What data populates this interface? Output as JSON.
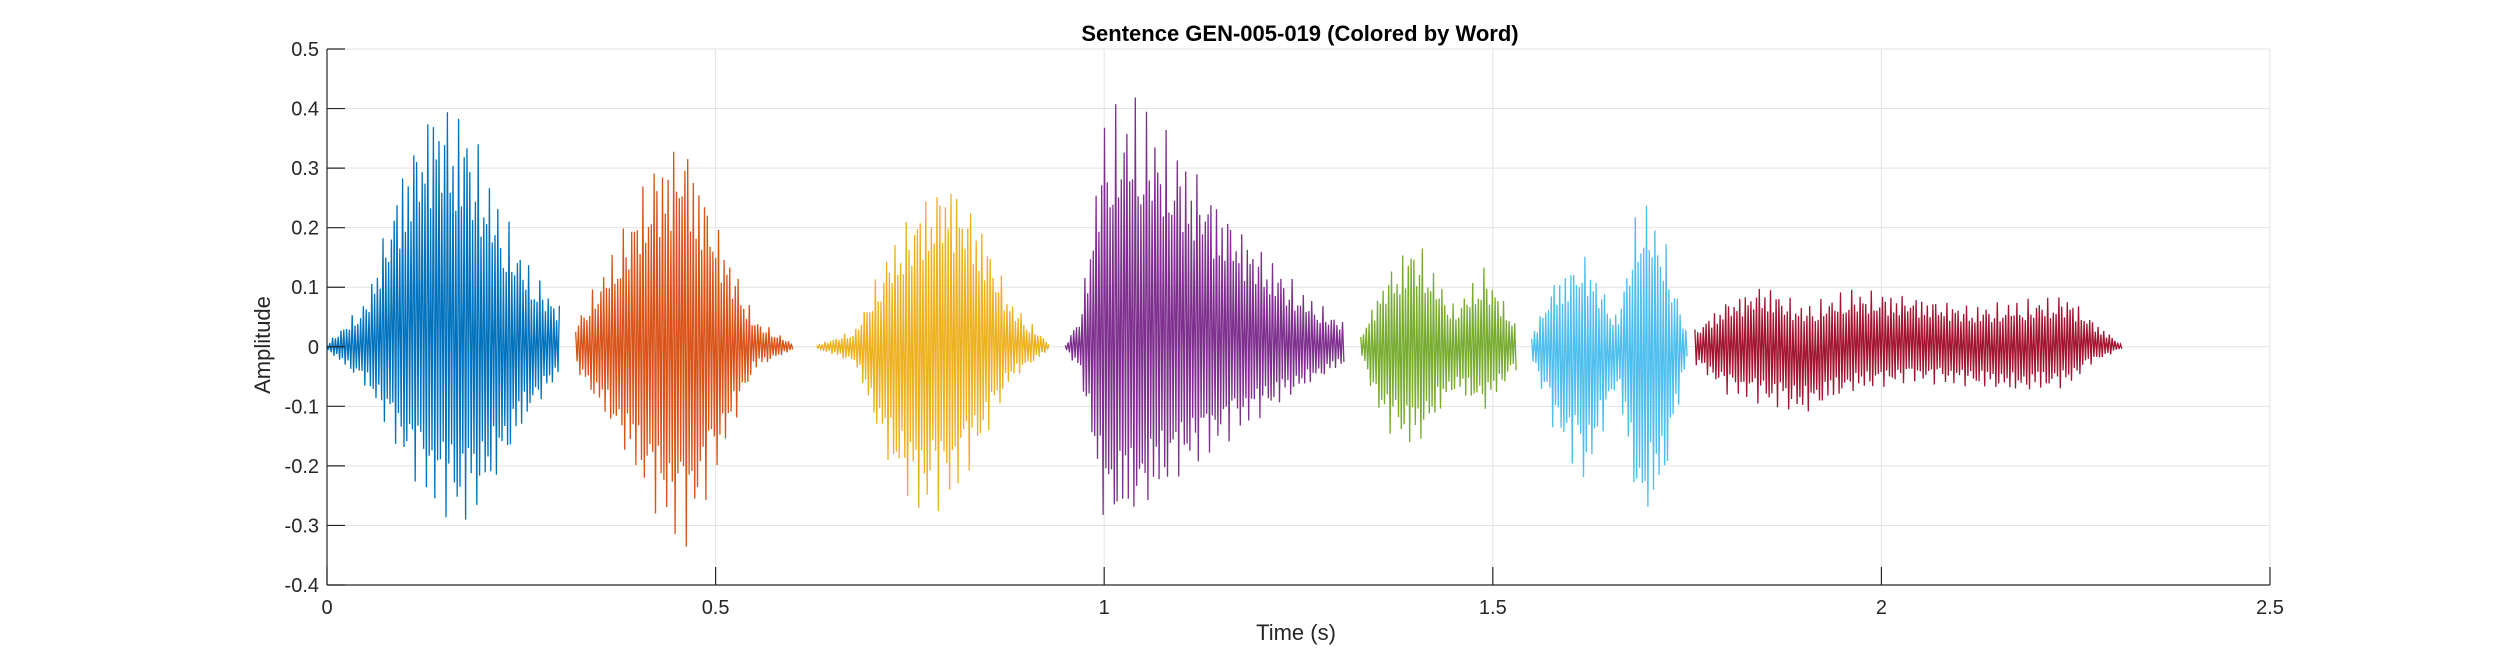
{
  "chart_data": {
    "type": "line",
    "title": "Sentence GEN-005-019 (Colored by Word)",
    "xlabel": "Time (s)",
    "ylabel": "Amplitude",
    "xlim": [
      0,
      2.5
    ],
    "ylim": [
      -0.4,
      0.5
    ],
    "xticks": [
      0,
      0.5,
      1,
      1.5,
      2,
      2.5
    ],
    "xtick_labels": [
      "0",
      "0.5",
      "1",
      "1.5",
      "2",
      "2.5"
    ],
    "yticks": [
      -0.4,
      -0.3,
      -0.2,
      -0.1,
      0,
      0.1,
      0.2,
      0.3,
      0.4,
      0.5
    ],
    "ytick_labels": [
      "-0.4",
      "-0.3",
      "-0.2",
      "-0.1",
      "0",
      "0.1",
      "0.2",
      "0.3",
      "0.4",
      "0.5"
    ],
    "grid": true,
    "series": [
      {
        "color": "#0072BD",
        "x": [
          0.0,
          0.05,
          0.1,
          0.14,
          0.18,
          0.22,
          0.26,
          0.3
        ],
        "upper": [
          0.005,
          0.08,
          0.33,
          0.44,
          0.4,
          0.25,
          0.14,
          0.07
        ],
        "lower": [
          -0.005,
          -0.07,
          -0.2,
          -0.28,
          -0.31,
          -0.23,
          -0.12,
          -0.05
        ]
      },
      {
        "color": "#D95319",
        "x": [
          0.32,
          0.37,
          0.42,
          0.46,
          0.5,
          0.55,
          0.6
        ],
        "upper": [
          0.04,
          0.17,
          0.32,
          0.37,
          0.22,
          0.05,
          0.005
        ],
        "lower": [
          -0.04,
          -0.15,
          -0.28,
          -0.35,
          -0.22,
          -0.04,
          -0.005
        ]
      },
      {
        "color": "#EDB120",
        "x": [
          0.63,
          0.68,
          0.72,
          0.76,
          0.8,
          0.84,
          0.88,
          0.93
        ],
        "upper": [
          0.003,
          0.03,
          0.16,
          0.25,
          0.3,
          0.22,
          0.08,
          0.005
        ],
        "lower": [
          -0.003,
          -0.03,
          -0.2,
          -0.29,
          -0.27,
          -0.18,
          -0.06,
          -0.005
        ]
      },
      {
        "color": "#7E2F8E",
        "x": [
          0.95,
          0.97,
          1.0,
          1.04,
          1.1,
          1.18,
          1.26,
          1.31
        ],
        "upper": [
          0.003,
          0.06,
          0.4,
          0.43,
          0.34,
          0.2,
          0.09,
          0.04
        ],
        "lower": [
          -0.003,
          -0.05,
          -0.31,
          -0.3,
          -0.22,
          -0.14,
          -0.07,
          -0.03
        ]
      },
      {
        "color": "#77AC30",
        "x": [
          1.33,
          1.36,
          1.4,
          1.45,
          1.49,
          1.53
        ],
        "upper": [
          0.02,
          0.12,
          0.19,
          0.07,
          0.14,
          0.04
        ],
        "lower": [
          -0.02,
          -0.14,
          -0.18,
          -0.08,
          -0.11,
          -0.04
        ]
      },
      {
        "color": "#4DBEEE",
        "x": [
          1.55,
          1.58,
          1.62,
          1.66,
          1.69,
          1.72,
          1.75
        ],
        "upper": [
          0.02,
          0.12,
          0.16,
          0.05,
          0.27,
          0.19,
          0.02
        ],
        "lower": [
          -0.02,
          -0.15,
          -0.24,
          -0.07,
          -0.32,
          -0.25,
          -0.02
        ]
      },
      {
        "color": "#A2142F",
        "x": [
          1.76,
          1.8,
          1.85,
          1.9,
          1.96,
          2.04,
          2.12,
          2.18,
          2.24,
          2.27,
          2.31
        ],
        "upper": [
          0.03,
          0.08,
          0.11,
          0.07,
          0.1,
          0.09,
          0.07,
          0.08,
          0.09,
          0.05,
          0.003
        ],
        "lower": [
          -0.03,
          -0.08,
          -0.1,
          -0.12,
          -0.08,
          -0.06,
          -0.07,
          -0.08,
          -0.07,
          -0.03,
          -0.003
        ]
      }
    ]
  }
}
